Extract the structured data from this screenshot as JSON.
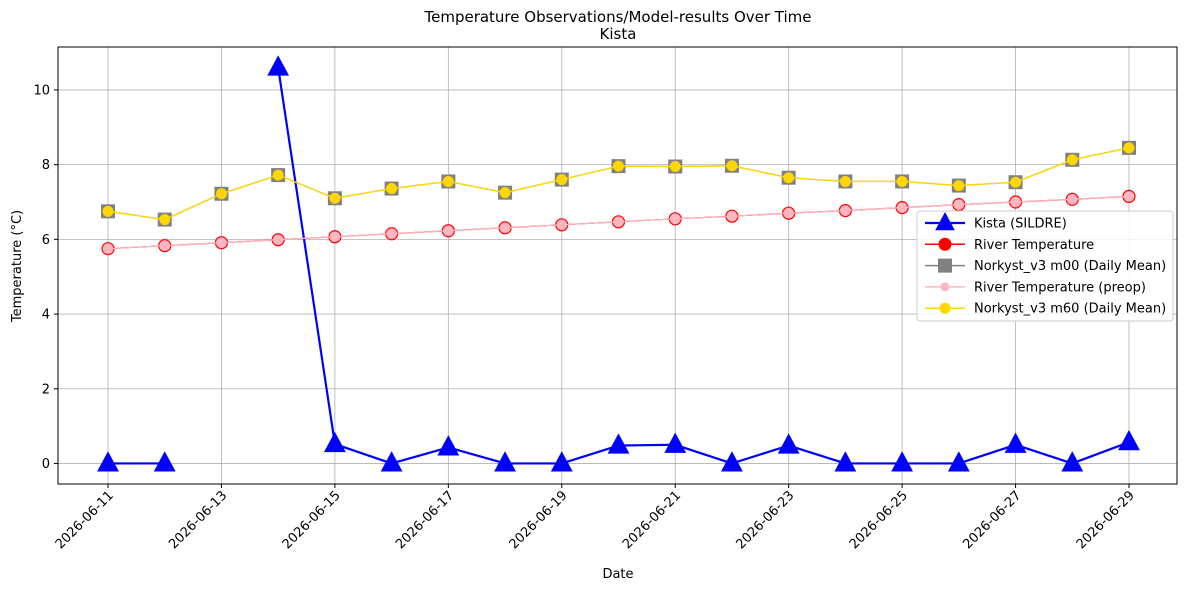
{
  "chart_data": {
    "type": "line",
    "title": "Temperature Observations/Model-results Over Time",
    "subtitle": "Kista",
    "xlabel": "Date",
    "ylabel": "Temperature (°C)",
    "ylim": [
      -0.55,
      11.15
    ],
    "yticks": [
      0,
      2,
      4,
      6,
      8,
      10
    ],
    "grid": true,
    "legend_position": "right",
    "x": [
      "2026-06-11",
      "2026-06-12",
      "2026-06-13",
      "2026-06-14",
      "2026-06-15",
      "2026-06-16",
      "2026-06-17",
      "2026-06-18",
      "2026-06-19",
      "2026-06-20",
      "2026-06-21",
      "2026-06-22",
      "2026-06-23",
      "2026-06-24",
      "2026-06-25",
      "2026-06-26",
      "2026-06-27",
      "2026-06-28",
      "2026-06-29"
    ],
    "xticks": [
      "2026-06-11",
      "2026-06-13",
      "2026-06-15",
      "2026-06-17",
      "2026-06-19",
      "2026-06-21",
      "2026-06-23",
      "2026-06-25",
      "2026-06-27",
      "2026-06-29"
    ],
    "series": [
      {
        "name": "Kista (SILDRE)",
        "color": "#0000ff",
        "marker": "triangle",
        "values": [
          0,
          0,
          null,
          10.6,
          0.52,
          0,
          0.43,
          0,
          0,
          0.48,
          0.5,
          0,
          0.48,
          0,
          0,
          0,
          0.5,
          0,
          0.57
        ]
      },
      {
        "name": "River Temperature",
        "color": "#ff0000",
        "marker": "circle",
        "values": [
          5.75,
          5.83,
          5.91,
          5.99,
          6.07,
          6.15,
          6.23,
          6.31,
          6.39,
          6.47,
          6.55,
          6.62,
          6.7,
          6.77,
          6.85,
          6.93,
          7.0,
          7.07,
          7.15
        ]
      },
      {
        "name": "Norkyst_v3 m00 (Daily Mean)",
        "color": "#808080",
        "marker": "square",
        "values": [
          6.75,
          6.53,
          7.22,
          7.72,
          7.1,
          7.36,
          7.55,
          7.25,
          7.6,
          7.96,
          7.95,
          7.97,
          7.65,
          7.55,
          7.55,
          7.44,
          7.53,
          8.13,
          8.45
        ]
      },
      {
        "name": "River Temperature (preop)",
        "color": "#ffb6c1",
        "marker": "circle",
        "values": [
          5.75,
          5.83,
          5.91,
          5.99,
          6.07,
          6.15,
          6.23,
          6.31,
          6.39,
          6.47,
          6.55,
          6.62,
          6.7,
          6.77,
          6.85,
          6.93,
          7.0,
          7.07,
          7.15
        ]
      },
      {
        "name": "Norkyst_v3 m60 (Daily Mean)",
        "color": "#ffd700",
        "marker": "circle",
        "values": [
          6.75,
          6.53,
          7.22,
          7.72,
          7.1,
          7.36,
          7.55,
          7.25,
          7.6,
          7.96,
          7.95,
          7.97,
          7.65,
          7.55,
          7.55,
          7.44,
          7.53,
          8.13,
          8.45
        ]
      }
    ]
  }
}
